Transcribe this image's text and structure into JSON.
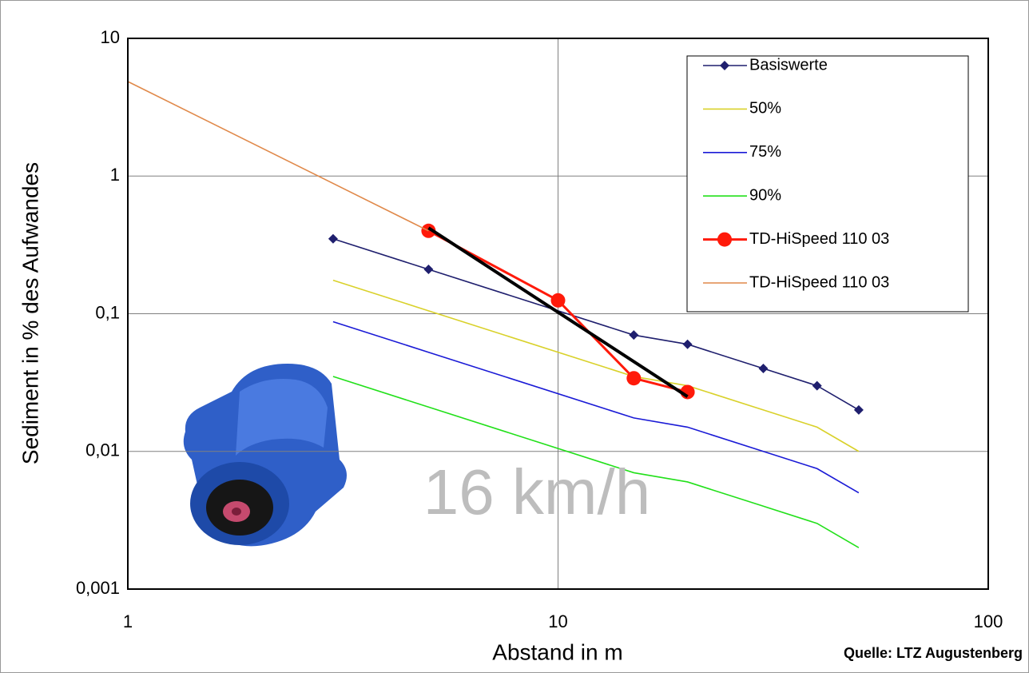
{
  "chart_data": {
    "type": "line",
    "x_label": "Abstand in m",
    "y_label": "Sediment in % des Aufwandes",
    "annotation": "16 km/h",
    "source": "Quelle: LTZ Augustenberg",
    "xlog": true,
    "ylog": true,
    "grid": true,
    "legend": "top-right",
    "xlim": [
      1,
      100
    ],
    "xticks": [
      1,
      10,
      100
    ],
    "ylim": [
      0.001,
      10
    ],
    "yticks": [
      {
        "value": 0.001,
        "label": "0,001"
      },
      {
        "value": 0.01,
        "label": "0,01"
      },
      {
        "value": 0.1,
        "label": "0,1"
      },
      1,
      10
    ],
    "series": [
      {
        "name": "Basiswerte",
        "color": "#1f1f6e",
        "marker": "diamond",
        "x": [
          3,
          5,
          15,
          20,
          30,
          40,
          50
        ],
        "values": [
          0.35,
          0.21,
          0.07,
          0.06,
          0.04,
          0.03,
          0.02
        ]
      },
      {
        "name": "50%",
        "color": "#d9d12a",
        "x": [
          3,
          5,
          15,
          20,
          30,
          40,
          50
        ],
        "values": [
          0.175,
          0.105,
          0.035,
          0.03,
          0.02,
          0.015,
          0.01
        ]
      },
      {
        "name": "75%",
        "color": "#1a1ad6",
        "x": [
          3,
          5,
          15,
          20,
          30,
          40,
          50
        ],
        "values": [
          0.0875,
          0.0525,
          0.0175,
          0.015,
          0.01,
          0.0075,
          0.005
        ]
      },
      {
        "name": "90%",
        "color": "#22e01a",
        "x": [
          3,
          5,
          15,
          20,
          30,
          40,
          50
        ],
        "values": [
          0.035,
          0.021,
          0.007,
          0.006,
          0.004,
          0.003,
          0.002
        ]
      },
      {
        "name": "TD-HiSpeed 110 03",
        "color": "#ff1a0a",
        "marker": "circle",
        "width": 3,
        "x": [
          5,
          10,
          15,
          20
        ],
        "values": [
          0.4,
          0.125,
          0.034,
          0.027
        ]
      },
      {
        "name": "TD-HiSpeed 110 03",
        "color": "#e0894a",
        "x": [
          1,
          5
        ],
        "values": [
          4.86,
          0.4
        ]
      }
    ],
    "trendline": {
      "color": "#000000",
      "width": 4,
      "x": [
        5,
        20
      ],
      "values": [
        0.42,
        0.025
      ]
    }
  }
}
